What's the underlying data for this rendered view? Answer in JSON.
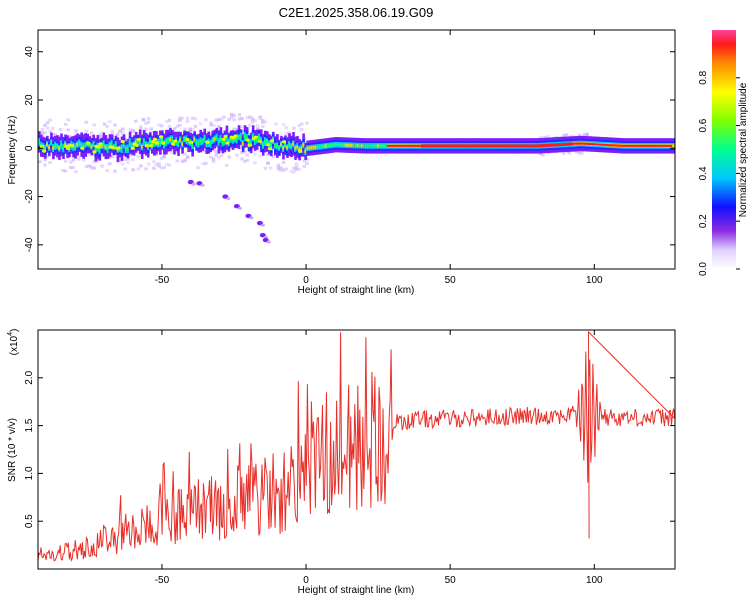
{
  "title": "C2E1.2025.358.06.19.G09",
  "chart_data": [
    {
      "type": "heatmap",
      "xlabel": "Height of straight line (km)",
      "ylabel": "Frequency (Hz)",
      "xlim": [
        -93,
        128
      ],
      "ylim": [
        -50,
        49
      ],
      "xticks": [
        -50,
        0,
        50,
        100
      ],
      "yticks": [
        40,
        20,
        0,
        -20,
        -40
      ],
      "colorbar": {
        "label": "Normalized spectral amplitude",
        "range": [
          0.0,
          1.0
        ],
        "ticks": [
          0.0,
          0.2,
          0.4,
          0.6,
          0.8
        ]
      },
      "ridge": [
        {
          "x": -90,
          "f": 1.5
        },
        {
          "x": -75,
          "f": 0.5
        },
        {
          "x": -60,
          "f": 1
        },
        {
          "x": -50,
          "f": 2.5
        },
        {
          "x": -40,
          "f": 2.5
        },
        {
          "x": -30,
          "f": 3.5
        },
        {
          "x": -20,
          "f": 3.5
        },
        {
          "x": -10,
          "f": 1.5
        },
        {
          "x": 0,
          "f": 0
        },
        {
          "x": 10,
          "f": 1.5
        },
        {
          "x": 20,
          "f": 1
        },
        {
          "x": 40,
          "f": 1
        },
        {
          "x": 80,
          "f": 1
        },
        {
          "x": 95,
          "f": 2
        },
        {
          "x": 110,
          "f": 1
        },
        {
          "x": 128,
          "f": 1
        }
      ],
      "scatter_trace": [
        {
          "x": -40,
          "f": -14
        },
        {
          "x": -37,
          "f": -14.5
        },
        {
          "x": -28,
          "f": -20
        },
        {
          "x": -24,
          "f": -24
        },
        {
          "x": -20,
          "f": -28
        },
        {
          "x": -16,
          "f": -31
        },
        {
          "x": -15,
          "f": -36
        },
        {
          "x": -14,
          "f": -38
        }
      ]
    },
    {
      "type": "line",
      "xlabel": "Height of straight line (km)",
      "ylabel": "SNR (10 * v/v)",
      "multiplier": "(x10^4)",
      "multiplier_base": "(x10",
      "multiplier_exp": "4",
      "multiplier_close": ")",
      "xlim": [
        -93,
        128
      ],
      "ylim": [
        0,
        25000
      ],
      "xticks": [
        -50,
        0,
        50,
        100
      ],
      "yticks": [
        0.5,
        1.0,
        1.5,
        2.0
      ],
      "ytick_labels": [
        "0.5",
        "1.0",
        "1.5",
        "2.0"
      ],
      "color": "#e8302a",
      "envelope": [
        {
          "x": -93,
          "y": 1500
        },
        {
          "x": -80,
          "y": 2000
        },
        {
          "x": -70,
          "y": 3000
        },
        {
          "x": -60,
          "y": 4000
        },
        {
          "x": -50,
          "y": 5000
        },
        {
          "x": -40,
          "y": 6000
        },
        {
          "x": -30,
          "y": 6500
        },
        {
          "x": -20,
          "y": 7500
        },
        {
          "x": -10,
          "y": 8000
        },
        {
          "x": 0,
          "y": 9500
        },
        {
          "x": 5,
          "y": 11000
        },
        {
          "x": 15,
          "y": 12000
        },
        {
          "x": 25,
          "y": 14000
        },
        {
          "x": 30,
          "y": 15500
        },
        {
          "x": 40,
          "y": 15800
        },
        {
          "x": 60,
          "y": 16000
        },
        {
          "x": 80,
          "y": 16200
        },
        {
          "x": 96,
          "y": 16300
        },
        {
          "x": 110,
          "y": 16000
        },
        {
          "x": 128,
          "y": 16000
        }
      ],
      "spike": {
        "x": 98,
        "ymax": 24800,
        "ymin": 3200
      }
    }
  ]
}
